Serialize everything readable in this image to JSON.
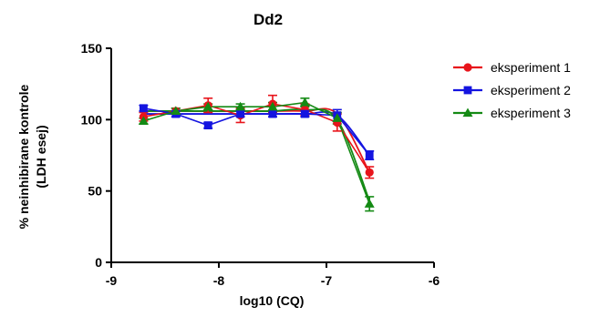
{
  "chart_data": {
    "type": "line",
    "title": "Dd2",
    "xlabel": "log10 (CQ)",
    "ylabel_lines": [
      "% neinhibirane kontrole",
      "(LDH esej)"
    ],
    "xlim": [
      -9,
      -6
    ],
    "ylim": [
      0,
      150
    ],
    "xticks": [
      -9,
      -8,
      -7,
      -6
    ],
    "yticks": [
      0,
      50,
      100,
      150
    ],
    "xtick_labels": [
      "-9",
      "-8",
      "-7",
      "-6"
    ],
    "ytick_labels": [
      "0",
      "50",
      "100",
      "150"
    ],
    "grid": false,
    "legend_position": "right",
    "series": [
      {
        "name": "eksperiment 1",
        "color": "#e8141b",
        "marker": "circle",
        "x": [
          -8.7,
          -8.4,
          -8.1,
          -7.8,
          -7.5,
          -7.2,
          -6.9,
          -6.6
        ],
        "y": [
          102,
          106,
          110,
          103,
          111,
          107,
          98,
          63
        ],
        "err": [
          3,
          2,
          5,
          5,
          6,
          4,
          6,
          4
        ],
        "fit_y": [
          106,
          106,
          106,
          106,
          106,
          106,
          104,
          63
        ]
      },
      {
        "name": "eksperiment 2",
        "color": "#1414e0",
        "marker": "square",
        "x": [
          -8.7,
          -8.4,
          -8.1,
          -7.8,
          -7.5,
          -7.2,
          -6.9,
          -6.6
        ],
        "y": [
          108,
          104,
          96,
          104,
          104,
          104,
          103,
          75
        ],
        "err": [
          2,
          2,
          2,
          2,
          2,
          2,
          4,
          3
        ],
        "fit_y": [
          104,
          104,
          104,
          104,
          104,
          104,
          103,
          75
        ]
      },
      {
        "name": "eksperiment 3",
        "color": "#148a14",
        "marker": "triangle",
        "x": [
          -8.7,
          -8.4,
          -8.1,
          -7.8,
          -7.5,
          -7.2,
          -6.9,
          -6.6
        ],
        "y": [
          99,
          106,
          109,
          109,
          109,
          112,
          101,
          41
        ],
        "err": [
          2,
          2,
          2,
          2,
          3,
          3,
          4,
          5
        ],
        "fit_y": [
          106,
          106,
          106,
          106,
          106,
          107,
          100,
          43
        ]
      }
    ]
  }
}
